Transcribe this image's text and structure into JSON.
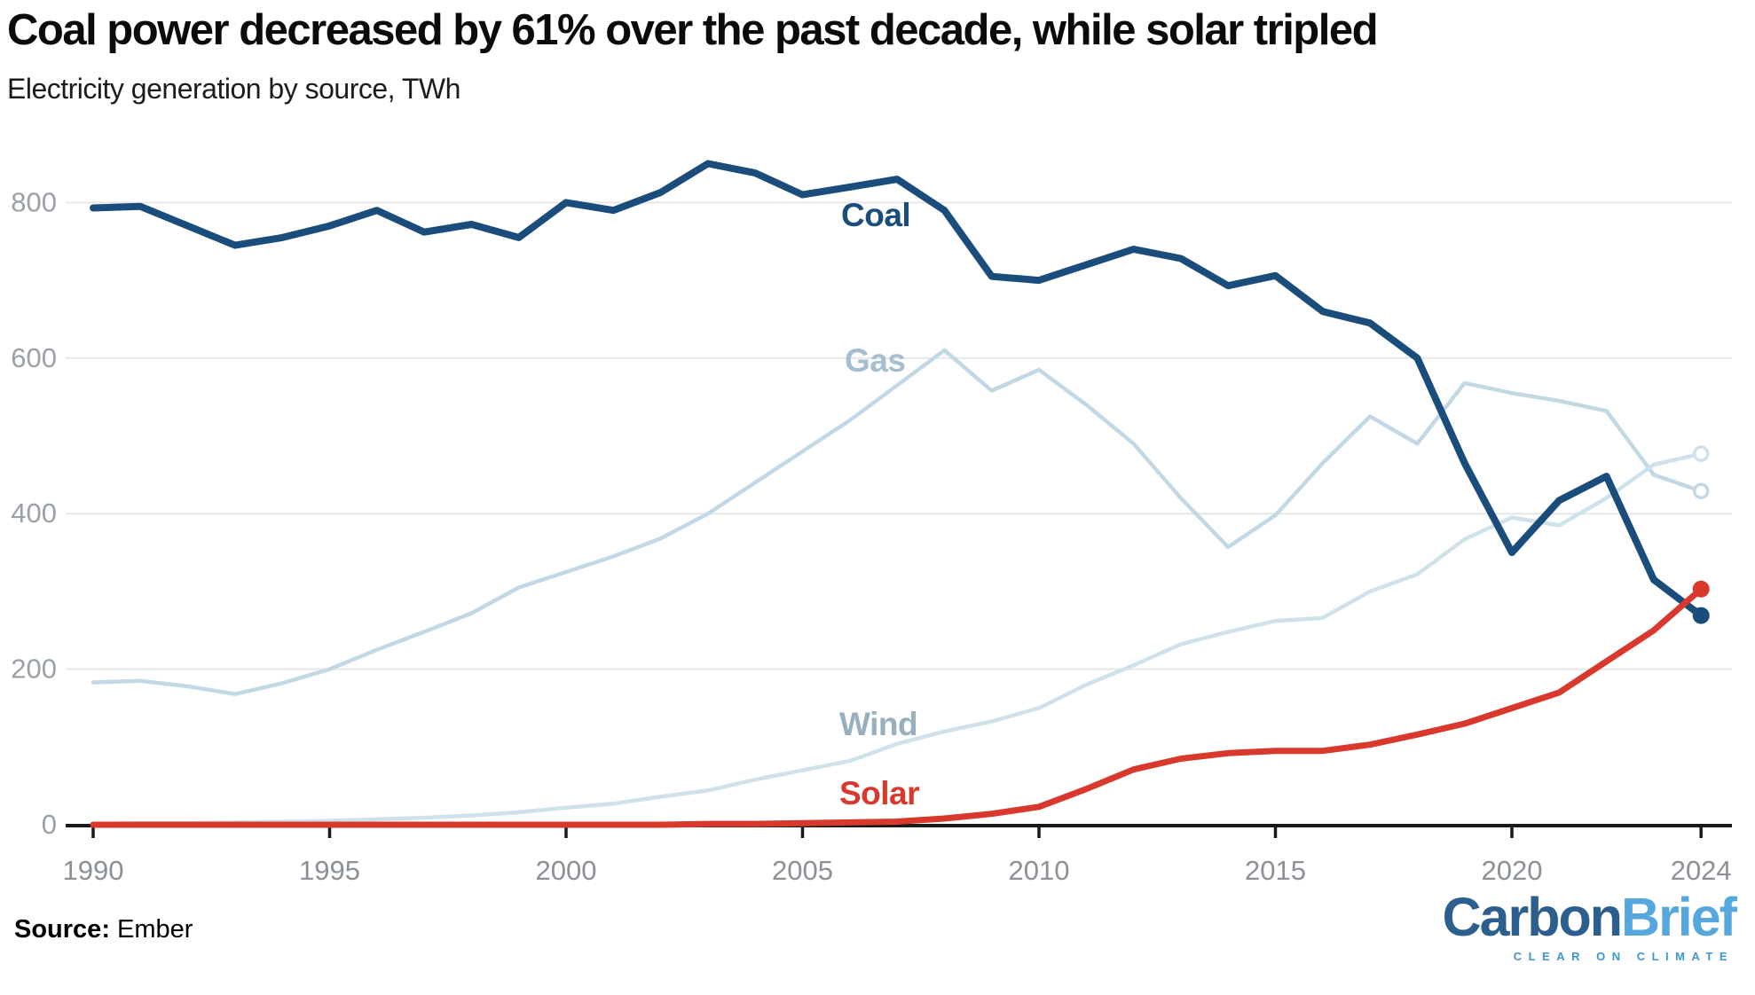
{
  "header": {
    "title": "Coal power decreased by 61% over the past decade, while solar tripled",
    "subtitle": "Electricity generation by source, TWh"
  },
  "footer": {
    "source_label": "Source:",
    "source_value": "Ember"
  },
  "logo": {
    "part1": "Carbon",
    "part2": "Brief",
    "tagline": "CLEAR ON CLIMATE",
    "part1_color": "#2c5f8d",
    "part2_color": "#56a7dd",
    "tagline_color": "#3d96cf"
  },
  "colors": {
    "coal": "#1a4d7c",
    "gas": "#c2d8e4",
    "wind": "#cfe1ea",
    "solar": "#d8392c",
    "coal_label": "#1a4d7c",
    "gas_label": "#a5bfcf",
    "wind_label": "#97afbe",
    "solar_label": "#d8392c",
    "grid": "#e7e7e7",
    "axis": "#1a1a1a",
    "ytick_text": "#9aa0a5",
    "xtick_text": "#8b9196"
  },
  "chart_data": {
    "type": "line",
    "title": "Coal power decreased by 61% over the past decade, while solar tripled",
    "subtitle": "Electricity generation by source, TWh",
    "xlabel": "",
    "ylabel": "TWh",
    "ylim": [
      0,
      900
    ],
    "xlim": [
      1990,
      2024
    ],
    "grid": "horizontal",
    "legend": "direct-line-labels",
    "yticks": [
      800,
      600,
      400,
      200,
      0
    ],
    "xticks": [
      1990,
      1995,
      2000,
      2005,
      2010,
      2015,
      2020,
      2024
    ],
    "years": [
      1990,
      1991,
      1992,
      1993,
      1994,
      1995,
      1996,
      1997,
      1998,
      1999,
      2000,
      2001,
      2002,
      2003,
      2004,
      2005,
      2006,
      2007,
      2008,
      2009,
      2010,
      2011,
      2012,
      2013,
      2014,
      2015,
      2016,
      2017,
      2018,
      2019,
      2020,
      2021,
      2022,
      2023,
      2024
    ],
    "series": [
      {
        "name": "Gas",
        "color_key": "gas",
        "end_marker": "open",
        "values": [
          183,
          185,
          178,
          168,
          182,
          200,
          225,
          248,
          272,
          305,
          325,
          345,
          368,
          400,
          440,
          480,
          520,
          565,
          610,
          558,
          585,
          540,
          490,
          420,
          357,
          398,
          465,
          525,
          490,
          568,
          555,
          545,
          532,
          450,
          429
        ]
      },
      {
        "name": "Wind",
        "color_key": "wind",
        "end_marker": "open",
        "values": [
          1,
          2,
          2,
          3,
          4,
          5,
          7,
          9,
          12,
          16,
          22,
          27,
          36,
          44,
          58,
          70,
          82,
          104,
          120,
          133,
          150,
          180,
          205,
          232,
          248,
          262,
          266,
          300,
          322,
          367,
          395,
          385,
          420,
          463,
          477
        ]
      },
      {
        "name": "Coal",
        "color_key": "coal",
        "end_marker": "filled",
        "values": [
          793,
          795,
          770,
          745,
          755,
          770,
          790,
          762,
          772,
          755,
          800,
          790,
          813,
          850,
          838,
          810,
          820,
          830,
          790,
          705,
          700,
          720,
          740,
          728,
          693,
          706,
          660,
          645,
          600,
          465,
          350,
          417,
          448,
          315,
          269
        ]
      },
      {
        "name": "Solar",
        "color_key": "solar",
        "end_marker": "filled",
        "values": [
          0,
          0,
          0,
          0,
          0,
          0,
          0,
          0,
          0,
          0,
          0,
          0,
          0,
          1,
          1,
          2,
          3,
          4,
          8,
          14,
          23,
          46,
          71,
          85,
          92,
          95,
          95,
          103,
          116,
          130,
          150,
          170,
          210,
          250,
          303
        ]
      }
    ]
  }
}
